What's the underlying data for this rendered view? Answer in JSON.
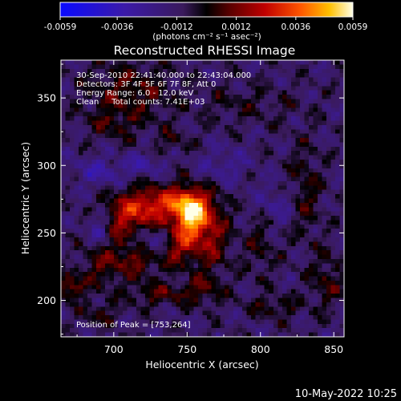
{
  "chart_data": {
    "type": "heatmap",
    "title": "Reconstructed RHESSI Image",
    "xlabel": "Heliocentric X (arcsec)",
    "ylabel": "Heliocentric Y (arcsec)",
    "xlim": [
      664,
      857
    ],
    "ylim": [
      173,
      378
    ],
    "x_ticks": [
      700,
      750,
      800,
      850
    ],
    "y_ticks": [
      200,
      250,
      300,
      350
    ],
    "colorbar": {
      "min": -0.0059,
      "max": 0.0059,
      "ticks": [
        "-0.0059",
        "-0.0036",
        "-0.0012",
        "0.0012",
        "0.0036",
        "0.0059"
      ],
      "tick_values": [
        -0.0059,
        -0.0036,
        -0.0012,
        0.0012,
        0.0036,
        0.0059
      ],
      "unit_label": "(photons cm⁻² s⁻¹ asec⁻²)"
    },
    "annotations": [
      "30-Sep-2010 22:41:40.000 to 22:43:04.000",
      "Detectors: 3F 4F 5F 6F 7F 8F, Att 0",
      "Energy Range: 6.0 - 12.0 keV",
      "Clean     Total counts: 7.41E+03"
    ],
    "peak_label": "Position of Peak = [753,264]",
    "peak": [
      753,
      264
    ],
    "sources": [
      {
        "x": 753,
        "y": 264,
        "sx": 8,
        "sy": 12,
        "amp": 0.0059
      },
      {
        "x": 735,
        "y": 272,
        "sx": 16,
        "sy": 9,
        "amp": 0.0034
      },
      {
        "x": 710,
        "y": 262,
        "sx": 14,
        "sy": 12,
        "amp": 0.003
      },
      {
        "x": 745,
        "y": 240,
        "sx": 10,
        "sy": 10,
        "amp": 0.0028
      },
      {
        "x": 768,
        "y": 248,
        "sx": 8,
        "sy": 20,
        "amp": 0.0022
      },
      {
        "x": 715,
        "y": 232,
        "sx": 12,
        "sy": 10,
        "amp": 0.0024
      },
      {
        "x": 690,
        "y": 225,
        "sx": 9,
        "sy": 12,
        "amp": 0.0016
      },
      {
        "x": 670,
        "y": 210,
        "sx": 6,
        "sy": 6,
        "amp": 0.0028
      },
      {
        "x": 730,
        "y": 205,
        "sx": 16,
        "sy": 6,
        "amp": 0.0016
      },
      {
        "x": 760,
        "y": 208,
        "sx": 10,
        "sy": 8,
        "amp": 0.0014
      },
      {
        "x": 710,
        "y": 355,
        "sx": 20,
        "sy": 15,
        "amp": 0.0018
      },
      {
        "x": 700,
        "y": 330,
        "sx": 12,
        "sy": 8,
        "amp": 0.0012
      },
      {
        "x": 740,
        "y": 318,
        "sx": 8,
        "sy": 6,
        "amp": 0.0012
      },
      {
        "x": 800,
        "y": 245,
        "sx": 8,
        "sy": 20,
        "amp": 0.0012
      },
      {
        "x": 830,
        "y": 280,
        "sx": 8,
        "sy": 25,
        "amp": 0.0014
      },
      {
        "x": 845,
        "y": 215,
        "sx": 8,
        "sy": 15,
        "amp": 0.0014
      },
      {
        "x": 810,
        "y": 195,
        "sx": 12,
        "sy": 6,
        "amp": 0.0014
      },
      {
        "x": 690,
        "y": 190,
        "sx": 10,
        "sy": 6,
        "amp": 0.0012
      },
      {
        "x": 790,
        "y": 345,
        "sx": 25,
        "sy": 10,
        "amp": 0.0008
      },
      {
        "x": 725,
        "y": 243,
        "sx": 10,
        "sy": 8,
        "amp": -0.0025
      },
      {
        "x": 720,
        "y": 300,
        "sx": 10,
        "sy": 6,
        "amp": -0.0014
      },
      {
        "x": 690,
        "y": 255,
        "sx": 6,
        "sy": 10,
        "amp": -0.002
      },
      {
        "x": 775,
        "y": 300,
        "sx": 12,
        "sy": 10,
        "amp": -0.0012
      },
      {
        "x": 810,
        "y": 270,
        "sx": 10,
        "sy": 12,
        "amp": -0.0014
      },
      {
        "x": 690,
        "y": 295,
        "sx": 12,
        "sy": 8,
        "amp": -0.0016
      }
    ],
    "grid": false
  },
  "footer": {
    "timestamp": "10-May-2022 10:25"
  }
}
